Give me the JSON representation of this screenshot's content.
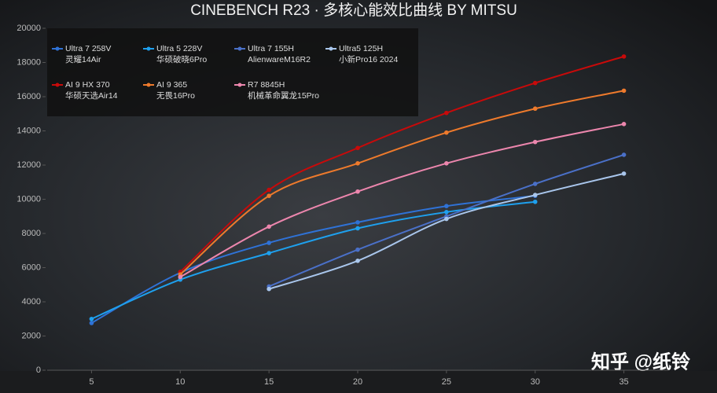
{
  "chart_data": {
    "type": "line",
    "title": "CINEBENCH R23 · 多核心能效比曲线 BY MITSU",
    "watermark": "知乎 @纸铃",
    "xlim": [
      2.5,
      37.5
    ],
    "xticks": [
      5,
      10,
      15,
      20,
      25,
      30,
      35
    ],
    "ylim": [
      0,
      20000
    ],
    "yticks": [
      0,
      2000,
      4000,
      6000,
      8000,
      10000,
      12000,
      14000,
      16000,
      18000,
      20000
    ],
    "legend": "top-left",
    "series": [
      {
        "name": "Ultra 7 258V",
        "device": "灵耀14Air",
        "color": "#2f72d6",
        "x": [
          5,
          10,
          15,
          20,
          25,
          30
        ],
        "values": [
          2760,
          5700,
          7450,
          8650,
          9600,
          10200
        ]
      },
      {
        "name": "Ultra 5 228V",
        "device": "华硕破晓6Pro",
        "color": "#1ea0ee",
        "x": [
          5,
          10,
          15,
          20,
          25,
          30
        ],
        "values": [
          3000,
          5300,
          6850,
          8300,
          9250,
          9850
        ]
      },
      {
        "name": "Ultra 7 155H",
        "device": "AlienwareM16R2",
        "color": "#4a70c8",
        "x": [
          15,
          20,
          25,
          30,
          35
        ],
        "values": [
          4900,
          7050,
          9000,
          10900,
          12600
        ]
      },
      {
        "name": "Ultra5 125H",
        "device": "小新Pro16 2024",
        "color": "#a9c6ec",
        "x": [
          15,
          20,
          25,
          30,
          35
        ],
        "values": [
          4750,
          6400,
          8850,
          10250,
          11500
        ]
      },
      {
        "name": "AI 9 HX 370",
        "device": "华硕天选Air14",
        "color": "#c80a0a",
        "x": [
          10,
          15,
          20,
          25,
          30,
          35
        ],
        "values": [
          5750,
          10550,
          13000,
          15050,
          16800,
          18350
        ]
      },
      {
        "name": "AI 9 365",
        "device": "无畏16Pro",
        "color": "#ee7a2c",
        "x": [
          10,
          15,
          20,
          25,
          30,
          35
        ],
        "values": [
          5600,
          10200,
          12100,
          13900,
          15300,
          16350
        ]
      },
      {
        "name": "R7 8845H",
        "device": "机械革命翼龙15Pro",
        "color": "#ec86ad",
        "x": [
          10,
          15,
          20,
          25,
          30,
          35
        ],
        "values": [
          5450,
          8400,
          10450,
          12100,
          13350,
          14400
        ]
      }
    ]
  }
}
